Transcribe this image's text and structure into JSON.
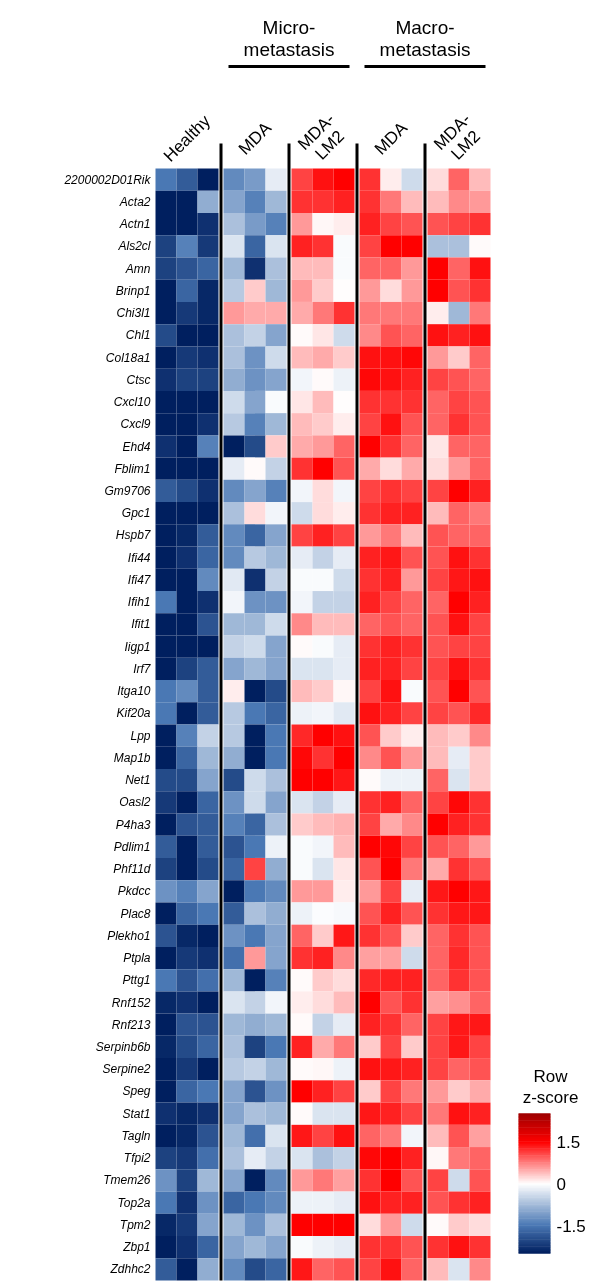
{
  "chart_data": {
    "type": "heatmap",
    "categories": [
      null,
      "Healthy",
      null,
      null,
      "MDA",
      null,
      null,
      "MDA-\nLM2",
      null,
      null,
      "MDA",
      null,
      null,
      "MDA-\nLM2",
      null
    ],
    "y_categories": [
      "2200002D01Rik",
      "Acta2",
      "Actn1",
      "Als2cl",
      "Amn",
      "Brinp1",
      "Chi3l1",
      "Chl1",
      "Col18a1",
      "Ctsc",
      "Cxcl10",
      "Cxcl9",
      "Ehd4",
      "Fblim1",
      "Gm9706",
      "Gpc1",
      "Hspb7",
      "Ifi44",
      "Ifi47",
      "Ifih1",
      "Ifit1",
      "Iigp1",
      "Irf7",
      "Itga10",
      "Kif20a",
      "Lpp",
      "Map1b",
      "Net1",
      "Oasl2",
      "P4ha3",
      "Pdlim1",
      "Phf11d",
      "Pkdcc",
      "Plac8",
      "Plekho1",
      "Ptpla",
      "Pttg1",
      "Rnf152",
      "Rnf213",
      "Serpinb6b",
      "Serpine2",
      "Speg",
      "Stat1",
      "Tagln",
      "Tfpi2",
      "Tmem26",
      "Top2a",
      "Tpm2",
      "Zbp1",
      "Zdhhc2"
    ],
    "annotations": [
      "Micro-\nmetastasis",
      "Macro-\nmetastasis"
    ],
    "clabel": "Row\nz-score",
    "clim": [
      -2.5,
      2.5
    ],
    "cticks": [
      1.5,
      0,
      -1.5
    ],
    "cells": [
      [
        -1.5,
        -1.8,
        -2.5,
        -1.3,
        -1.1,
        -0.2,
        1.1,
        1.4,
        1.5,
        1.2,
        0.1,
        -0.4,
        0.2,
        0.9,
        0.4
      ],
      [
        -2.5,
        -2.5,
        -0.9,
        -1.0,
        -1.4,
        -0.8,
        1.2,
        1.2,
        1.3,
        1.2,
        0.8,
        0.4,
        0.4,
        0.7,
        0.6
      ],
      [
        -2.5,
        -2.5,
        -2.3,
        -0.7,
        -1.1,
        -1.4,
        0.6,
        0.05,
        0.1,
        1.3,
        1.1,
        1.0,
        1.0,
        1.1,
        1.2
      ],
      [
        -2.1,
        -1.4,
        -2.2,
        -0.3,
        -1.7,
        -0.3,
        1.3,
        1.2,
        -0.05,
        1.1,
        1.5,
        1.5,
        -0.7,
        -0.7,
        0.02
      ],
      [
        -2.1,
        -1.9,
        -1.7,
        -0.8,
        -2.3,
        -0.7,
        0.4,
        0.4,
        -0.05,
        0.9,
        0.9,
        0.6,
        1.5,
        0.9,
        1.4
      ],
      [
        -2.5,
        -1.7,
        -2.4,
        -0.6,
        0.3,
        -0.8,
        0.6,
        0.3,
        0,
        0.6,
        0.2,
        0.6,
        1.5,
        1.0,
        1.2
      ],
      [
        -2.5,
        -2.2,
        -2.4,
        0.6,
        0.5,
        0.5,
        0.5,
        0.8,
        1.2,
        0.8,
        0.8,
        0.8,
        0.1,
        -0.8,
        0.8
      ],
      [
        -2.0,
        -2.5,
        -2.5,
        -0.7,
        -0.5,
        -1.0,
        0.02,
        0.15,
        -0.4,
        0.7,
        1.0,
        0.9,
        1.4,
        1.3,
        1.4
      ],
      [
        -2.5,
        -2.2,
        -2.3,
        -0.7,
        -1.2,
        -0.4,
        0.4,
        0.5,
        0.3,
        1.4,
        1.4,
        1.45,
        0.6,
        0.3,
        0.9
      ],
      [
        -2.3,
        -2.1,
        -2.1,
        -0.9,
        -1.2,
        -1.0,
        -0.1,
        0.02,
        -0.15,
        1.45,
        1.4,
        1.3,
        1.1,
        1.0,
        0.9
      ],
      [
        -2.5,
        -2.5,
        -2.5,
        -0.4,
        -1.0,
        -0.05,
        0.15,
        0.4,
        0,
        1.2,
        1.2,
        1.2,
        0.9,
        1.1,
        1.0
      ],
      [
        -2.5,
        -2.5,
        -2.3,
        -0.6,
        -1.4,
        -0.8,
        0.4,
        0.3,
        0.1,
        1.1,
        1.4,
        1.0,
        0.9,
        1.2,
        1.0
      ],
      [
        -2.3,
        -2.5,
        -1.4,
        -2.5,
        -2.0,
        0.3,
        0.5,
        0.6,
        0.9,
        1.5,
        1.2,
        0.9,
        0.15,
        0.9,
        0.9
      ],
      [
        -2.5,
        -2.5,
        -2.5,
        -0.2,
        0.02,
        -0.5,
        1.2,
        1.5,
        1.0,
        0.5,
        0.2,
        0.5,
        0.2,
        0.6,
        0.9
      ],
      [
        -1.8,
        -2.0,
        -2.3,
        -1.3,
        -1.0,
        -1.4,
        -0.1,
        0.2,
        -0.1,
        1.1,
        1.2,
        1.1,
        1.1,
        1.5,
        1.3
      ],
      [
        -2.5,
        -2.5,
        -2.5,
        -0.7,
        0.2,
        -0.1,
        -0.4,
        0.2,
        0.1,
        1.2,
        1.3,
        1.3,
        0.4,
        0.9,
        0.8
      ],
      [
        -2.5,
        -2.4,
        -1.8,
        -1.3,
        -1.7,
        -1.0,
        1.1,
        1.3,
        1.1,
        0.6,
        0.8,
        0.4,
        1.0,
        0.9,
        0.9
      ],
      [
        -2.5,
        -2.3,
        -1.7,
        -1.3,
        -0.6,
        -0.8,
        -0.2,
        -0.5,
        -0.2,
        1.3,
        1.35,
        1.0,
        1.0,
        1.4,
        1.2
      ],
      [
        -2.5,
        -2.5,
        -1.3,
        -0.25,
        -2.3,
        -0.5,
        -0.05,
        -0.05,
        -0.4,
        1.2,
        1.3,
        0.6,
        1.1,
        1.35,
        1.4
      ],
      [
        -1.5,
        -2.5,
        -2.3,
        -0.1,
        -1.2,
        -1.2,
        -0.1,
        -0.5,
        -0.5,
        1.3,
        1.1,
        0.9,
        0.9,
        1.5,
        1.3
      ],
      [
        -2.5,
        -2.5,
        -1.9,
        -0.8,
        -0.8,
        -0.4,
        0.7,
        0.4,
        0.4,
        0.9,
        1.0,
        0.9,
        1.0,
        1.4,
        1.1
      ],
      [
        -2.5,
        -2.5,
        -2.5,
        -0.5,
        -0.4,
        -1.0,
        0.02,
        -0.05,
        -0.2,
        1.2,
        1.3,
        1.2,
        1.0,
        1.1,
        1.1
      ],
      [
        -2.5,
        -2.1,
        -1.8,
        -1.0,
        -0.8,
        -1.0,
        -0.3,
        -0.3,
        -0.2,
        1.3,
        1.3,
        1.1,
        1.1,
        1.4,
        1.2
      ],
      [
        -1.5,
        -1.3,
        -1.8,
        0.1,
        -2.5,
        -2.0,
        0.4,
        0.3,
        0.05,
        1.1,
        1.4,
        -0.05,
        1.0,
        1.5,
        1.0
      ],
      [
        -1.5,
        -2.5,
        -1.8,
        -0.6,
        -1.5,
        -1.7,
        -0.15,
        -0.1,
        -0.25,
        1.4,
        1.3,
        1.1,
        1.1,
        1.0,
        1.25
      ],
      [
        -2.5,
        -1.4,
        -0.5,
        -0.6,
        -2.5,
        -1.5,
        1.25,
        1.5,
        1.4,
        1.0,
        0.3,
        0.1,
        0.4,
        0.3,
        0.7
      ],
      [
        -2.5,
        -1.7,
        -0.8,
        -0.9,
        -2.5,
        -1.5,
        1.45,
        1.2,
        1.5,
        0.7,
        1.0,
        0.6,
        0.4,
        -0.2,
        0.3
      ],
      [
        -2.0,
        -2.0,
        -1.0,
        -2.0,
        -0.4,
        -0.7,
        1.5,
        1.5,
        1.35,
        0.02,
        -0.15,
        -0.15,
        0.9,
        -0.3,
        0.3
      ],
      [
        -2.2,
        -2.5,
        -1.7,
        -1.2,
        -0.4,
        -1.0,
        -0.3,
        -0.5,
        -0.2,
        1.2,
        1.3,
        0.9,
        1.1,
        1.45,
        1.2
      ],
      [
        -2.5,
        -1.9,
        -1.8,
        -1.4,
        -1.7,
        -0.7,
        0.3,
        0.4,
        0.45,
        1.1,
        0.5,
        0.7,
        1.5,
        1.3,
        1.2
      ],
      [
        -1.8,
        -2.5,
        -1.8,
        -1.9,
        -1.5,
        -0.15,
        -0.05,
        -0.1,
        0.4,
        1.5,
        1.45,
        1.1,
        1.0,
        0.9,
        0.6
      ],
      [
        -2.1,
        -2.5,
        -2.0,
        -1.7,
        1.1,
        -0.9,
        -0.05,
        -0.3,
        0.15,
        1.0,
        1.5,
        0.8,
        0.5,
        1.2,
        1.0
      ],
      [
        -1.2,
        -1.4,
        -1.0,
        -2.5,
        -1.5,
        -1.3,
        0.6,
        0.6,
        0.1,
        0.6,
        1.1,
        -0.2,
        1.35,
        1.5,
        1.35
      ],
      [
        -2.5,
        -1.7,
        -1.5,
        -1.8,
        -0.7,
        -0.9,
        -0.15,
        -0.03,
        -0.07,
        1.0,
        1.3,
        1.0,
        1.2,
        1.35,
        1.35
      ],
      [
        -1.9,
        -2.4,
        -2.5,
        -1.2,
        -1.5,
        -1.0,
        0.9,
        0.3,
        1.35,
        1.2,
        1.0,
        0.3,
        0.9,
        1.2,
        1.0
      ],
      [
        -2.5,
        -2.2,
        -2.3,
        -1.6,
        0.6,
        -1.0,
        1.2,
        1.3,
        0.7,
        0.55,
        0.55,
        -0.4,
        0.9,
        1.25,
        1.0
      ],
      [
        -1.5,
        -1.9,
        -1.6,
        -0.8,
        -2.5,
        -1.4,
        0.02,
        0.3,
        0.2,
        1.25,
        1.3,
        1.3,
        0.9,
        1.2,
        1.0
      ],
      [
        -2.4,
        -2.3,
        -2.5,
        -0.3,
        -0.5,
        -0.1,
        0.1,
        0.2,
        0.4,
        1.5,
        1.0,
        1.2,
        0.55,
        0.65,
        0.9
      ],
      [
        -2.5,
        -1.9,
        -1.9,
        -0.8,
        -0.9,
        -0.8,
        0.02,
        -0.5,
        -0.2,
        1.3,
        1.2,
        0.9,
        1.1,
        1.35,
        1.35
      ],
      [
        -2.4,
        -2.0,
        -1.7,
        -0.7,
        -2.1,
        -1.5,
        1.3,
        0.5,
        0.8,
        0.3,
        1.1,
        0.3,
        1.1,
        1.35,
        1.1
      ],
      [
        -2.5,
        -2.2,
        -2.5,
        -0.6,
        -0.5,
        -0.8,
        0.02,
        0.05,
        -0.15,
        1.4,
        1.35,
        1.3,
        1.1,
        0.9,
        1.0
      ],
      [
        -2.5,
        -1.7,
        -1.5,
        -1.0,
        -1.9,
        -1.2,
        1.5,
        1.3,
        1.1,
        0.3,
        1.1,
        0.8,
        0.6,
        0.3,
        0.5
      ],
      [
        -2.3,
        -2.4,
        -2.3,
        -1.0,
        -0.7,
        -0.8,
        0.02,
        -0.3,
        -0.3,
        1.35,
        1.3,
        1.1,
        0.8,
        1.4,
        1.3
      ],
      [
        -2.5,
        -2.4,
        -1.9,
        -0.8,
        -1.6,
        -0.3,
        1.35,
        1.1,
        1.4,
        0.9,
        0.8,
        -0.1,
        0.4,
        1.0,
        0.55
      ],
      [
        -2.1,
        -2.2,
        -1.6,
        -0.7,
        -0.2,
        -0.5,
        -0.3,
        -0.7,
        -0.5,
        1.45,
        1.5,
        1.3,
        0.05,
        0.8,
        0.9
      ],
      [
        -1.2,
        -2.1,
        -0.8,
        -1.0,
        -2.5,
        -1.3,
        0.6,
        0.8,
        0.55,
        1.2,
        1.5,
        1.0,
        1.1,
        -0.4,
        1.0
      ],
      [
        -1.5,
        -2.3,
        -1.2,
        -1.7,
        -1.5,
        -1.3,
        -0.15,
        -0.15,
        -0.2,
        1.4,
        1.3,
        1.3,
        1.0,
        1.2,
        1.3
      ],
      [
        -2.4,
        -2.2,
        -1.0,
        -0.8,
        -1.2,
        -0.7,
        1.5,
        1.5,
        1.5,
        0.2,
        0.6,
        -0.4,
        0.03,
        0.3,
        0.2
      ],
      [
        -2.5,
        -2.3,
        -1.7,
        -1.0,
        -0.8,
        -1.0,
        -0.05,
        -0.15,
        -0.2,
        1.2,
        1.2,
        1.0,
        1.2,
        1.4,
        1.2
      ],
      [
        -1.8,
        -2.5,
        -0.9,
        -1.3,
        -2.0,
        -1.7,
        1.35,
        0.9,
        1.0,
        1.1,
        1.4,
        0.9,
        0.4,
        -0.3,
        0.7
      ]
    ]
  }
}
